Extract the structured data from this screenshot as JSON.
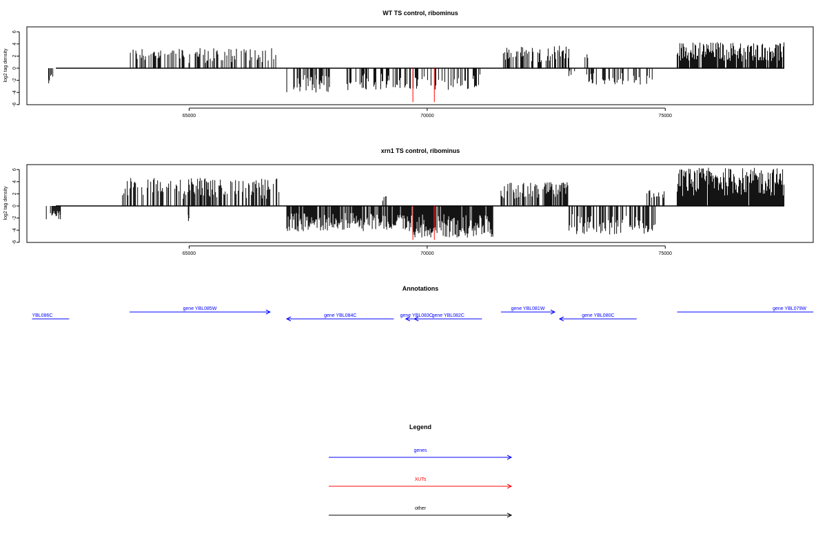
{
  "chart_data": [
    {
      "type": "bar",
      "title": "WT TS control, ribominus",
      "xlabel": "",
      "ylabel": "log2 tag density",
      "xlim": [
        61700,
        78300
      ],
      "ylim": [
        -6,
        7
      ],
      "xticks": [
        65000,
        70000,
        75000
      ],
      "yticks": [
        -6,
        -4,
        -2,
        0,
        2,
        4,
        6
      ],
      "box": true,
      "series": [
        {
          "color": "#000000",
          "segments": [
            {
              "strand": "+",
              "x": [
                63750,
                66850
              ],
              "max": 3.3,
              "density": 0.42
            },
            {
              "strand": "-",
              "x": [
                62050,
                62150
              ],
              "max": -2.5,
              "density": 0.7
            },
            {
              "strand": "-",
              "x": [
                67050,
                68000
              ],
              "max": -4.0,
              "density": 0.45
            },
            {
              "strand": "-",
              "x": [
                68300,
                71300
              ],
              "max": -3.6,
              "density": 0.4
            },
            {
              "strand": "+",
              "x": [
                71600,
                73000
              ],
              "max": 3.7,
              "density": 0.42
            },
            {
              "strand": "+",
              "x": [
                73300,
                73400
              ],
              "max": 2.3,
              "density": 0.3
            },
            {
              "strand": "-",
              "x": [
                72950,
                73100
              ],
              "max": -1.3,
              "density": 0.3
            },
            {
              "strand": "-",
              "x": [
                73350,
                74800
              ],
              "max": -2.7,
              "density": 0.38
            },
            {
              "strand": "+",
              "x": [
                75250,
                77500
              ],
              "max": 4.3,
              "density": 0.88
            }
          ]
        },
        {
          "color": "#ff0000",
          "spikes": [
            {
              "x": 69700,
              "y": -5.6
            },
            {
              "x": 70150,
              "y": -5.6
            }
          ]
        }
      ]
    },
    {
      "type": "bar",
      "title": "xrn1 TS control, ribominus",
      "xlabel": "",
      "ylabel": "log2 tag density",
      "xlim": [
        61700,
        78300
      ],
      "ylim": [
        -6,
        7
      ],
      "xticks": [
        65000,
        70000,
        75000
      ],
      "yticks": [
        -6,
        -4,
        -2,
        0,
        2,
        4,
        6
      ],
      "box": true,
      "series": [
        {
          "color": "#000000",
          "segments": [
            {
              "strand": "-",
              "x": [
                62000,
                62300
              ],
              "max": -2.2,
              "density": 0.7
            },
            {
              "strand": "+",
              "x": [
                63600,
                66900
              ],
              "max": 4.6,
              "density": 0.55
            },
            {
              "strand": "-",
              "x": [
                64980,
                65000
              ],
              "max": -2.5,
              "density": 1.0
            },
            {
              "strand": "-",
              "x": [
                67050,
                69700
              ],
              "max": -4.2,
              "density": 0.85
            },
            {
              "strand": "+",
              "x": [
                69050,
                69150
              ],
              "max": 1.6,
              "density": 0.5
            },
            {
              "strand": "-",
              "x": [
                69700,
                71400
              ],
              "max": -5.2,
              "density": 0.92
            },
            {
              "strand": "+",
              "x": [
                71550,
                73000
              ],
              "max": 3.9,
              "density": 0.65
            },
            {
              "strand": "-",
              "x": [
                72950,
                74800
              ],
              "max": -4.7,
              "density": 0.6
            },
            {
              "strand": "+",
              "x": [
                74600,
                75000
              ],
              "max": 2.6,
              "density": 0.35
            },
            {
              "strand": "+",
              "x": [
                75250,
                77500
              ],
              "max": 6.3,
              "density": 0.98
            }
          ]
        },
        {
          "color": "#ff0000",
          "spikes": [
            {
              "x": 69700,
              "y": -5.6
            },
            {
              "x": 70150,
              "y": -5.6
            }
          ]
        }
      ]
    }
  ],
  "annotations": {
    "title": "Annotations",
    "color": "#0000ff",
    "genes": [
      {
        "label": "YBL086C",
        "start": 61700,
        "end": 62480,
        "dir": "none",
        "row": "low",
        "label_anchor": "start"
      },
      {
        "label": "gene YBL085W",
        "start": 63750,
        "end": 66700,
        "dir": "right",
        "row": "high",
        "label_anchor": "middle"
      },
      {
        "label": "gene YBL084C",
        "start": 67050,
        "end": 69300,
        "dir": "left",
        "row": "low",
        "label_anchor": "middle"
      },
      {
        "label": "gene YBL083C",
        "start": 69550,
        "end": 70000,
        "dir": "left",
        "row": "low",
        "label_anchor": "middle"
      },
      {
        "label": "gene YBL082C",
        "start": 69730,
        "end": 71150,
        "dir": "left",
        "row": "low",
        "label_anchor": "middle"
      },
      {
        "label": "gene YBL081W",
        "start": 71550,
        "end": 72680,
        "dir": "right",
        "row": "high",
        "label_anchor": "middle"
      },
      {
        "label": "gene YBL080C",
        "start": 72780,
        "end": 74400,
        "dir": "left",
        "row": "low",
        "label_anchor": "middle"
      },
      {
        "label": "gene YBL079W",
        "start": 75250,
        "end": 78300,
        "dir": "none",
        "row": "high",
        "label_anchor": "end"
      }
    ]
  },
  "legend": {
    "title": "Legend",
    "items": [
      {
        "label": "genes",
        "color": "#0000ff"
      },
      {
        "label": "XUTs",
        "color": "#ff0000"
      },
      {
        "label": "other",
        "color": "#000000"
      }
    ]
  }
}
